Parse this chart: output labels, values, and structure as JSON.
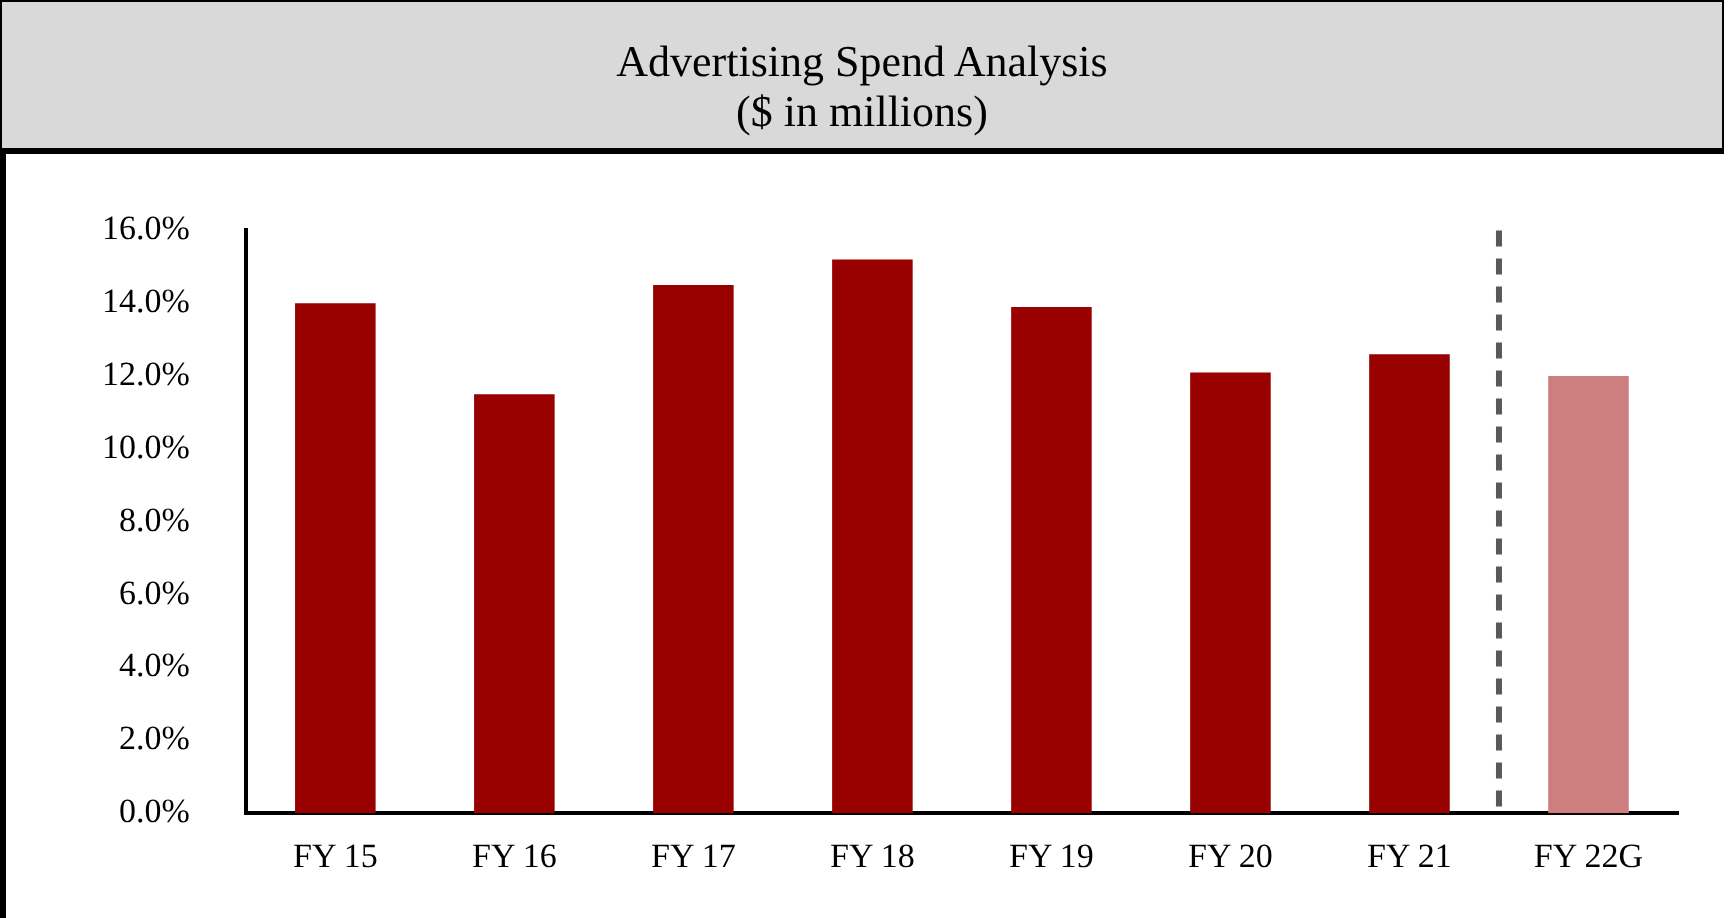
{
  "chart_data": {
    "type": "bar",
    "title": "Advertising Spend Analysis",
    "subtitle": "($ in millions)",
    "categories": [
      "FY 15",
      "FY 16",
      "FY 17",
      "FY 18",
      "FY 19",
      "FY 20",
      "FY 21",
      "FY 22G"
    ],
    "values": [
      14.0,
      11.5,
      14.5,
      15.2,
      13.9,
      12.1,
      12.6,
      12.0
    ],
    "colors": [
      "#990000",
      "#990000",
      "#990000",
      "#990000",
      "#990000",
      "#990000",
      "#990000",
      "#cd7f7f"
    ],
    "ylim": [
      0,
      16
    ],
    "yticks": [
      {
        "value": 0,
        "label": "0.0%"
      },
      {
        "value": 2,
        "label": "2.0%"
      },
      {
        "value": 4,
        "label": "4.0%"
      },
      {
        "value": 6,
        "label": "6.0%"
      },
      {
        "value": 8,
        "label": "8.0%"
      },
      {
        "value": 10,
        "label": "10.0%"
      },
      {
        "value": 12,
        "label": "12.0%"
      },
      {
        "value": 14,
        "label": "14.0%"
      },
      {
        "value": 16,
        "label": "16.0%"
      }
    ],
    "grid": false,
    "legend": false
  }
}
